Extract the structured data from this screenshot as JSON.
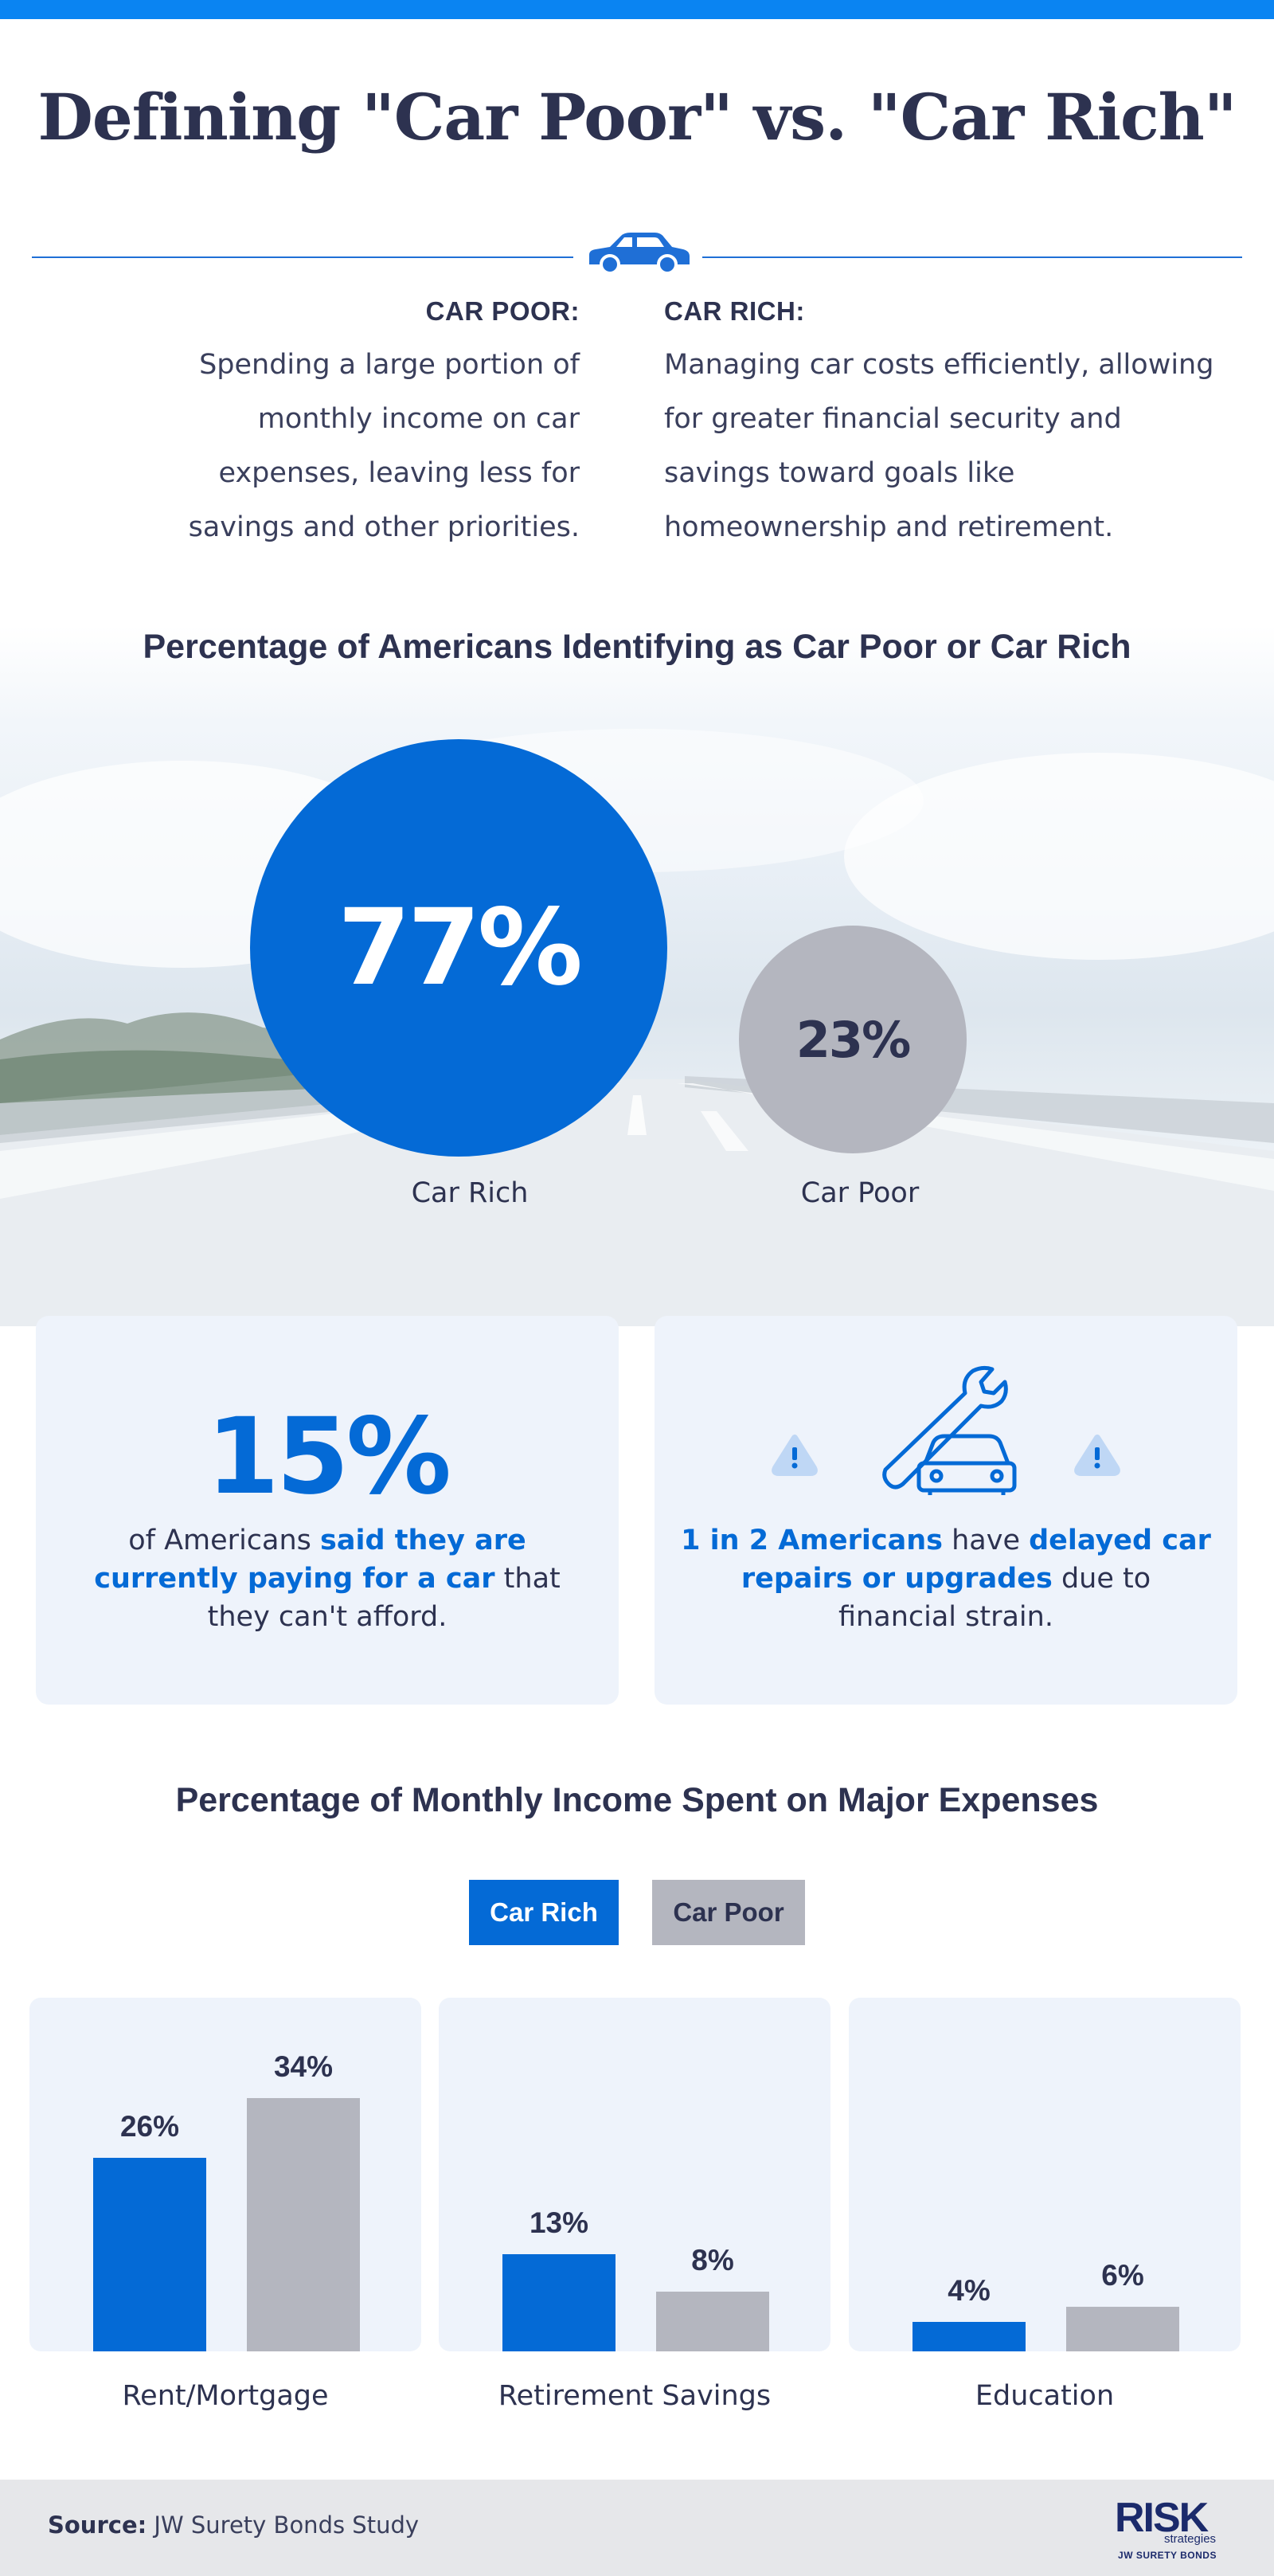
{
  "header": {
    "title": "Defining \"Car Poor\" vs. \"Car Rich\""
  },
  "definitions": {
    "poor": {
      "heading": "CAR POOR:",
      "lines": [
        "Spending a large portion of",
        "monthly income on car",
        "expenses, leaving less for",
        "savings and other priorities."
      ]
    },
    "rich": {
      "heading": "CAR RICH:",
      "lines": [
        "Managing car costs efficiently, allowing",
        "for greater financial security and",
        "savings toward goals like",
        "homeownership and retirement."
      ]
    }
  },
  "identify": {
    "title": "Percentage of Americans Identifying as Car Poor or Car Rich",
    "rich_value": "77%",
    "rich_label": "Car Rich",
    "poor_value": "23%",
    "poor_label": "Car Poor"
  },
  "stats": {
    "card1": {
      "big": "15%",
      "t1": "of Americans ",
      "h1": "said they are currently paying for a car",
      "t2": " that they can't afford."
    },
    "card2": {
      "h1": "1 in 2 Americans",
      "t1": " have ",
      "h2": "delayed car repairs or upgrades",
      "t2": " due to financial strain."
    }
  },
  "expenses": {
    "title": "Percentage of Monthly Income Spent on Major Expenses",
    "legend_rich": "Car Rich",
    "legend_poor": "Car Poor",
    "labels": {
      "rent_rich": "26%",
      "rent_poor": "34%",
      "ret_rich": "13%",
      "ret_poor": "8%",
      "edu_rich": "4%",
      "edu_poor": "6%"
    }
  },
  "colors": {
    "car_rich": "#046ad6",
    "car_poor": "#b4b6bf",
    "navy": "#2d3250"
  },
  "chart_data": [
    {
      "type": "pie",
      "title": "Percentage of Americans Identifying as Car Poor or Car Rich",
      "categories": [
        "Car Rich",
        "Car Poor"
      ],
      "values": [
        77,
        23
      ],
      "unit": "%"
    },
    {
      "type": "bar",
      "title": "Percentage of Monthly Income Spent on Major Expenses",
      "categories": [
        "Rent/Mortgage",
        "Retirement Savings",
        "Education"
      ],
      "series": [
        {
          "name": "Car Rich",
          "values": [
            26,
            13,
            4
          ],
          "color": "#046ad6"
        },
        {
          "name": "Car Poor",
          "values": [
            34,
            8,
            6
          ],
          "color": "#b4b6bf"
        }
      ],
      "unit": "%",
      "ylim": [
        0,
        34
      ],
      "grid": false,
      "legend": "top-center"
    }
  ],
  "footer": {
    "source_label": "Source:",
    "source_text": " JW Surety Bonds Study",
    "logo_main": "RISK",
    "logo_sub": "strategies",
    "logo_small": "JW SURETY BONDS"
  }
}
